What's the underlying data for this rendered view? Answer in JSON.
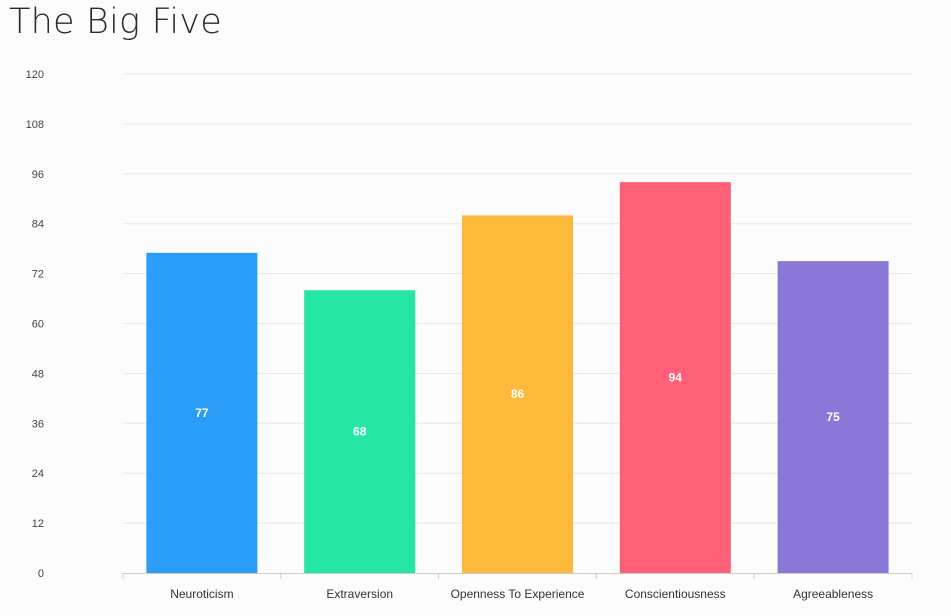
{
  "chart_data": {
    "type": "bar",
    "title": "The Big Five",
    "categories": [
      "Neuroticism",
      "Extraversion",
      "Openness To Experience",
      "Conscientiousness",
      "Agreeableness"
    ],
    "values": [
      77,
      68,
      86,
      94,
      75
    ],
    "data_labels": [
      "77",
      "68",
      "86",
      "94",
      "75"
    ],
    "colors": [
      "#2a9df8",
      "#26e6a4",
      "#fdba3a",
      "#ff6078",
      "#8b77d7"
    ],
    "ylim": [
      0,
      120
    ],
    "yticks": [
      0,
      12,
      24,
      36,
      48,
      60,
      72,
      84,
      96,
      108,
      120
    ],
    "xlabel": "",
    "ylabel": "",
    "grid": true,
    "legend": "none"
  }
}
